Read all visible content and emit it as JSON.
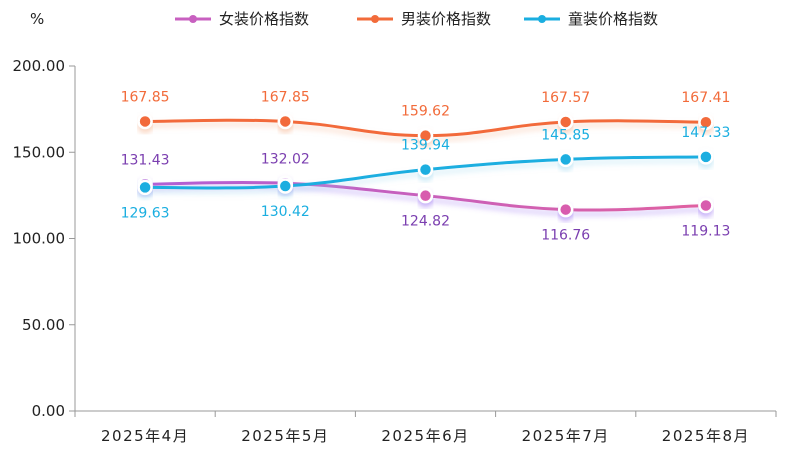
{
  "chart_data": {
    "type": "line",
    "unit_label": "%",
    "categories": [
      "2025年4月",
      "2025年5月",
      "2025年6月",
      "2025年7月",
      "2025年8月"
    ],
    "y_ticks": [
      "0.00",
      "50.00",
      "100.00",
      "150.00",
      "200.00"
    ],
    "ylim": [
      0,
      200
    ],
    "grid": false,
    "legend_position": "top",
    "series": [
      {
        "name": "女装价格指数",
        "values": [
          131.43,
          132.02,
          124.82,
          116.76,
          119.13
        ],
        "labels": [
          "131.43",
          "132.02",
          "124.82",
          "116.76",
          "119.13"
        ],
        "color": "#b05fd6",
        "color_end": "#e060a0",
        "label_color": "#7b3fb0"
      },
      {
        "name": "男装价格指数",
        "values": [
          167.85,
          167.85,
          159.62,
          167.57,
          167.41
        ],
        "labels": [
          "167.85",
          "167.85",
          "159.62",
          "167.57",
          "167.41"
        ],
        "color": "#f26b3a",
        "label_color": "#f26b3a"
      },
      {
        "name": "童装价格指数",
        "values": [
          129.63,
          130.42,
          139.94,
          145.85,
          147.33
        ],
        "labels": [
          "129.63",
          "130.42",
          "139.94",
          "145.85",
          "147.33"
        ],
        "color": "#1aaee0",
        "label_color": "#1aaee0"
      }
    ]
  }
}
